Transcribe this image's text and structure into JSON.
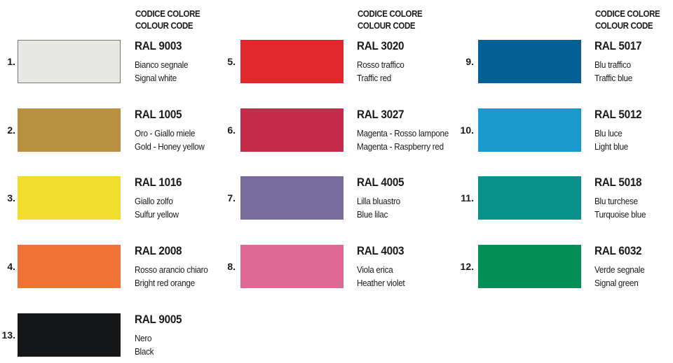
{
  "header": {
    "line1": "CODICE COLORE",
    "line2": "COLOUR CODE"
  },
  "columns": [
    {
      "items": [
        {
          "number": "1.",
          "code": "RAL 9003",
          "italian": "Bianco segnale",
          "english": "Signal white",
          "color": "#e7e7e3",
          "bordered": true
        },
        {
          "number": "2.",
          "code": "RAL 1005",
          "italian": "Oro - Giallo miele",
          "english": "Gold - Honey yellow",
          "color": "#b98f40"
        },
        {
          "number": "3.",
          "code": "RAL 1016",
          "italian": "Giallo zolfo",
          "english": "Sulfur yellow",
          "color": "#f1dd2e"
        },
        {
          "number": "4.",
          "code": "RAL 2008",
          "italian": "Rosso arancio chiaro",
          "english": "Bright red orange",
          "color": "#f17335"
        },
        {
          "number": "13.",
          "code": "RAL 9005",
          "italian": "Nero",
          "english": "Black",
          "color": "#151718"
        }
      ]
    },
    {
      "items": [
        {
          "number": "5.",
          "code": "RAL 3020",
          "italian": "Rosso traffico",
          "english": "Traffic red",
          "color": "#e0272b"
        },
        {
          "number": "6.",
          "code": "RAL 3027",
          "italian": "Magenta - Rosso lampone",
          "english": "Magenta - Raspberry red",
          "color": "#c52c49"
        },
        {
          "number": "7.",
          "code": "RAL 4005",
          "italian": "Lilla bluastro",
          "english": "Blue lilac",
          "color": "#776b9c"
        },
        {
          "number": "8.",
          "code": "RAL 4003",
          "italian": "Viola erica",
          "english": "Heather violet",
          "color": "#de6893"
        }
      ]
    },
    {
      "items": [
        {
          "number": "9.",
          "code": "RAL 5017",
          "italian": "Blu traffico",
          "english": "Traffic blue",
          "color": "#045f95"
        },
        {
          "number": "10.",
          "code": "RAL 5012",
          "italian": "Blu luce",
          "english": "Light blue",
          "color": "#1a9bd0"
        },
        {
          "number": "11.",
          "code": "RAL 5018",
          "italian": "Blu turchese",
          "english": "Turquoise blue",
          "color": "#07918a"
        },
        {
          "number": "12.",
          "code": "RAL 6032",
          "italian": "Verde segnale",
          "english": "Signal green",
          "color": "#038e56"
        }
      ]
    }
  ]
}
